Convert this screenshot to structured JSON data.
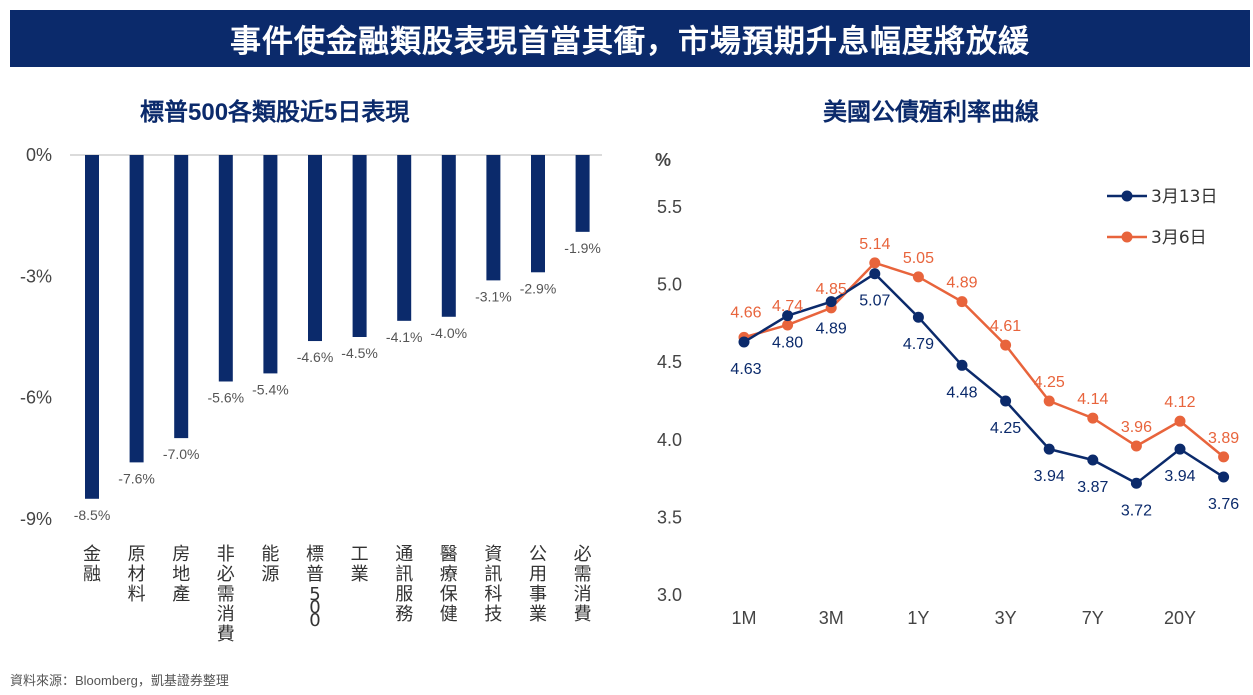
{
  "header": {
    "title": "事件使金融類股表現首當其衝，市場預期升息幅度將放緩"
  },
  "footer": {
    "source": "資料來源：Bloomberg，凱基證券整理"
  },
  "colors": {
    "navy": "#0b2a6b",
    "orange": "#e8643c",
    "label_gray": "#555555"
  },
  "chart_data": [
    {
      "type": "bar",
      "title": "標普500各類股近5日表現",
      "categories": [
        "金融",
        "原材料",
        "房地產",
        "非必需消費",
        "能源",
        "標普500",
        "工業",
        "通訊服務",
        "醫療保健",
        "資訊科技",
        "公用事業",
        "必需消費"
      ],
      "values": [
        -8.5,
        -7.6,
        -7.0,
        -5.6,
        -5.4,
        -4.6,
        -4.5,
        -4.1,
        -4.0,
        -3.1,
        -2.9,
        -1.9
      ],
      "data_labels": [
        "-8.5%",
        "-7.6%",
        "-7.0%",
        "-5.6%",
        "-5.4%",
        "-4.6%",
        "-4.5%",
        "-4.1%",
        "-4.0%",
        "-3.1%",
        "-2.9%",
        "-1.9%"
      ],
      "ylim": [
        -9,
        0
      ],
      "yticks": [
        0,
        -3,
        -6,
        -9
      ],
      "ytick_labels": [
        "0%",
        "-3%",
        "-6%",
        "-9%"
      ],
      "color": "#0b2a6b"
    },
    {
      "type": "line",
      "title": "美國公債殖利率曲線",
      "ylabel": "%",
      "ylim": [
        3.0,
        5.5
      ],
      "yticks": [
        3.0,
        3.5,
        4.0,
        4.5,
        5.0,
        5.5
      ],
      "ytick_labels": [
        "3.0",
        "3.5",
        "4.0",
        "4.5",
        "5.0",
        "5.5"
      ],
      "x": [
        "1M",
        "2M",
        "3M",
        "6M",
        "1Y",
        "2Y",
        "3Y",
        "5Y",
        "7Y",
        "10Y",
        "20Y",
        "30Y"
      ],
      "xtick_labels": [
        "1M",
        "",
        "3M",
        "",
        "1Y",
        "",
        "3Y",
        "",
        "7Y",
        "",
        "20Y",
        ""
      ],
      "legend_position": "top-right",
      "series": [
        {
          "name": "3月13日",
          "color": "#0b2a6b",
          "values": [
            4.63,
            4.8,
            4.89,
            5.07,
            4.79,
            4.48,
            4.25,
            3.94,
            3.87,
            3.72,
            3.94,
            3.76
          ],
          "labels": [
            "4.63",
            "4.80",
            "4.89",
            "5.07",
            "4.79",
            "4.48",
            "4.25",
            "3.94",
            "3.87",
            "3.72",
            "3.94",
            "3.76"
          ]
        },
        {
          "name": "3月6日",
          "color": "#e8643c",
          "values": [
            4.66,
            4.74,
            4.85,
            5.14,
            5.05,
            4.89,
            4.61,
            4.25,
            4.14,
            3.96,
            4.12,
            3.89
          ],
          "labels": [
            "4.66",
            "4.74",
            "4.85",
            "5.14",
            "5.05",
            "4.89",
            "4.61",
            "4.25",
            "4.14",
            "3.96",
            "4.12",
            "3.89"
          ]
        }
      ]
    }
  ]
}
